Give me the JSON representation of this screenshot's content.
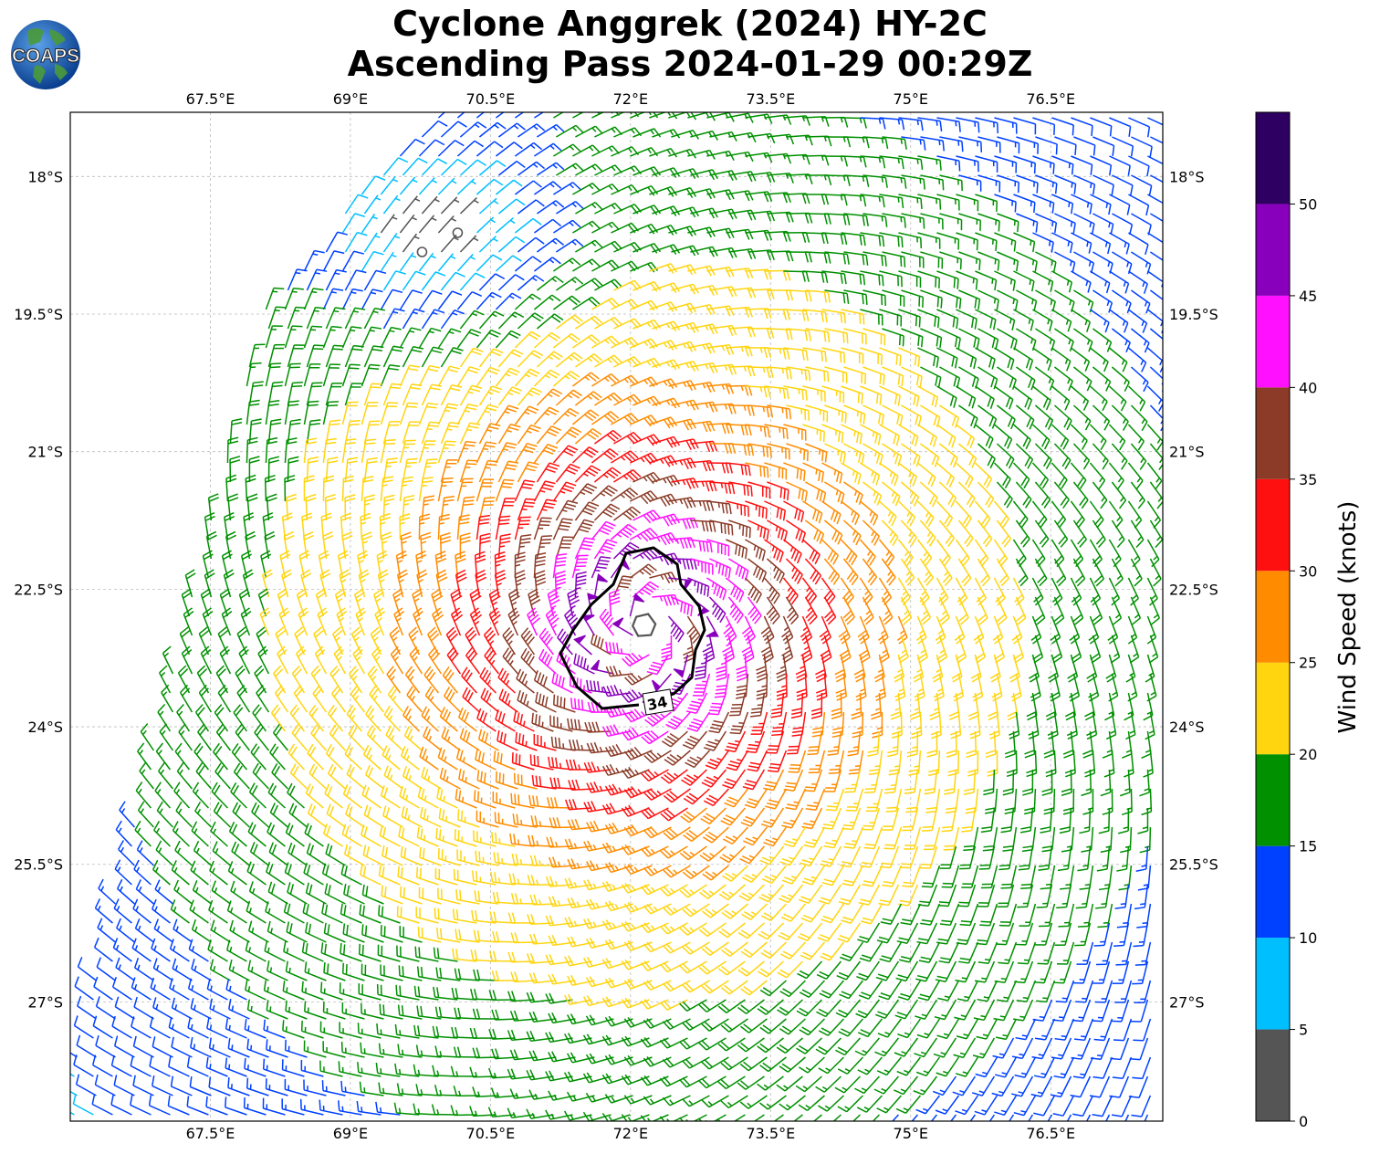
{
  "title": {
    "line1": "Cyclone Anggrek (2024) HY-2C",
    "line2": "Ascending Pass 2024-01-29 00:29Z"
  },
  "logo": {
    "text": "COAPS",
    "icon": "globe-icon"
  },
  "map": {
    "lon_ticks": [
      "67.5°E",
      "69°E",
      "70.5°E",
      "72°E",
      "73.5°E",
      "75°E",
      "76.5°E"
    ],
    "lat_ticks": [
      "18°S",
      "19.5°S",
      "21°S",
      "22.5°S",
      "24°S",
      "25.5°S",
      "27°S"
    ],
    "lon_values": [
      67.5,
      69,
      70.5,
      72,
      73.5,
      75,
      76.5
    ],
    "lat_values": [
      -18,
      -19.5,
      -21,
      -22.5,
      -24,
      -25.5,
      -27
    ],
    "lon_range": [
      66.0,
      77.7
    ],
    "lat_range": [
      -28.3,
      -17.3
    ],
    "storm_center": {
      "lon": 72.15,
      "lat": -22.9
    },
    "contour_label": "34"
  },
  "colorbar": {
    "label": "Wind Speed (knots)",
    "ticks": [
      "0",
      "5",
      "10",
      "15",
      "20",
      "25",
      "30",
      "35",
      "40",
      "45",
      "50"
    ],
    "bounds": [
      0,
      5,
      10,
      15,
      20,
      25,
      30,
      35,
      40,
      45,
      50,
      55
    ],
    "colors": [
      "#555555",
      "#00bfff",
      "#0040ff",
      "#009000",
      "#ffd510",
      "#ff8c00",
      "#ff1010",
      "#8b3b27",
      "#ff10ff",
      "#8800bb",
      "#2d0062"
    ]
  }
}
